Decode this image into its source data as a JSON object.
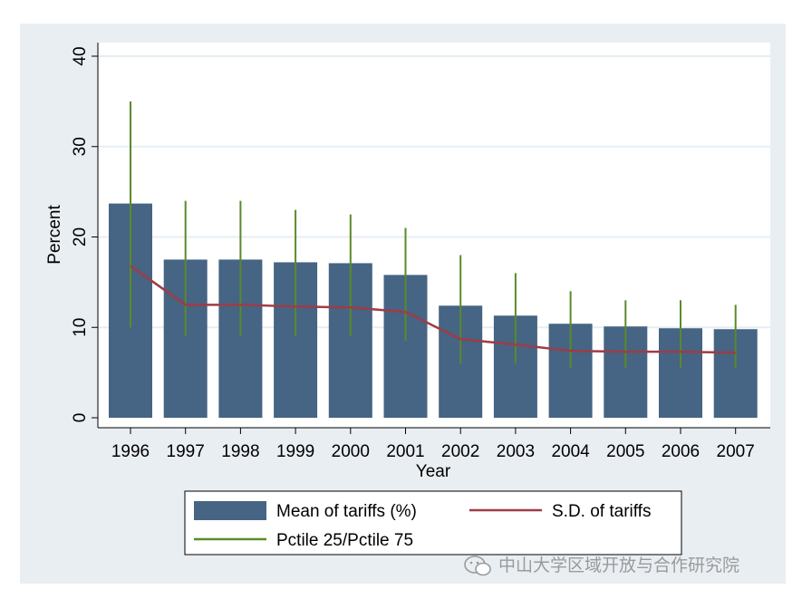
{
  "chart_data": {
    "type": "bar",
    "title": "",
    "xlabel": "Year",
    "ylabel": "Percent",
    "ylim": [
      0,
      40
    ],
    "yticks": [
      0,
      10,
      20,
      30,
      40
    ],
    "grid": true,
    "legend_position": "bottom",
    "categories": [
      "1996",
      "1997",
      "1998",
      "1999",
      "2000",
      "2001",
      "2002",
      "2003",
      "2004",
      "2005",
      "2006",
      "2007"
    ],
    "series": [
      {
        "name": "Mean of tariffs (%)",
        "type": "bar",
        "color": "#466483",
        "values": [
          23.7,
          17.5,
          17.5,
          17.2,
          17.1,
          15.8,
          12.4,
          11.3,
          10.4,
          10.1,
          9.9,
          9.8
        ]
      },
      {
        "name": "S.D. of tariffs",
        "type": "line",
        "color": "#9e3c46",
        "values": [
          16.8,
          12.5,
          12.5,
          12.3,
          12.2,
          11.7,
          8.7,
          8.1,
          7.4,
          7.3,
          7.3,
          7.2
        ]
      },
      {
        "name": "Pctile 25/Pctile 75",
        "type": "range",
        "color": "#5a8a2a",
        "low": [
          10,
          9,
          9,
          9,
          9,
          8.5,
          6,
          6,
          5.5,
          5.5,
          5.5,
          5.5
        ],
        "high": [
          35,
          24,
          24,
          23,
          22.5,
          21,
          18,
          16,
          14,
          13,
          13,
          12.5
        ]
      }
    ]
  },
  "colors": {
    "outer_bg": "#e9eef3",
    "plot_bg": "#ffffff",
    "grid": "#e6edf3",
    "axis": "#000000"
  },
  "watermark": {
    "text": "中山大学区域开放与合作研究院",
    "icon": "wechat-icon"
  }
}
